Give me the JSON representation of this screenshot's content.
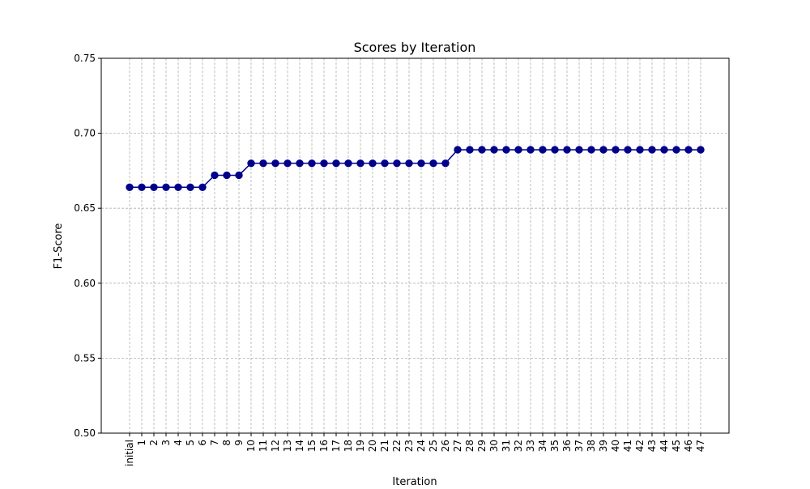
{
  "chart_data": {
    "type": "line",
    "title": "Scores by Iteration",
    "xlabel": "Iteration",
    "ylabel": "F1-Score",
    "ylim": [
      0.5,
      0.75
    ],
    "yticks": [
      "0.50",
      "0.55",
      "0.60",
      "0.65",
      "0.70",
      "0.75"
    ],
    "grid": true,
    "categories": [
      "initial",
      "1",
      "2",
      "3",
      "4",
      "5",
      "6",
      "7",
      "8",
      "9",
      "10",
      "11",
      "12",
      "13",
      "14",
      "15",
      "16",
      "17",
      "18",
      "19",
      "20",
      "21",
      "22",
      "23",
      "24",
      "25",
      "26",
      "27",
      "28",
      "29",
      "30",
      "31",
      "32",
      "33",
      "34",
      "35",
      "36",
      "37",
      "38",
      "39",
      "40",
      "41",
      "42",
      "43",
      "44",
      "45",
      "46",
      "47"
    ],
    "series": [
      {
        "color": "#00008b",
        "values": [
          0.664,
          0.664,
          0.664,
          0.664,
          0.664,
          0.664,
          0.664,
          0.672,
          0.672,
          0.672,
          0.68,
          0.68,
          0.68,
          0.68,
          0.68,
          0.68,
          0.68,
          0.68,
          0.68,
          0.68,
          0.68,
          0.68,
          0.68,
          0.68,
          0.68,
          0.68,
          0.68,
          0.689,
          0.689,
          0.689,
          0.689,
          0.689,
          0.689,
          0.689,
          0.689,
          0.689,
          0.689,
          0.689,
          0.689,
          0.689,
          0.689,
          0.689,
          0.689,
          0.689,
          0.689,
          0.689,
          0.689,
          0.689
        ]
      }
    ]
  }
}
